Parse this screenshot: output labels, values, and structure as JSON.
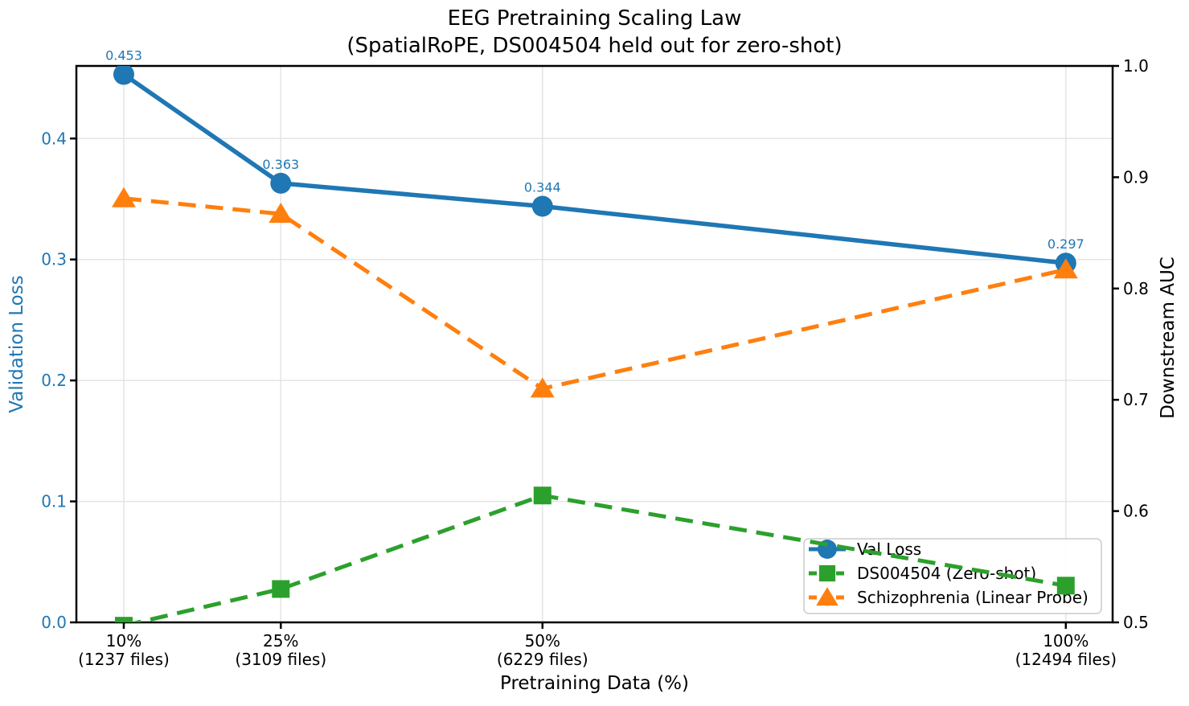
{
  "figure": {
    "title_line1": "EEG Pretraining Scaling Law",
    "title_line2": "(SpatialRoPE, DS004504 held out for zero-shot)",
    "xlabel": "Pretraining Data (%)",
    "ylabel_left": "Validation Loss",
    "ylabel_right": "Downstream AUC"
  },
  "chart_data": {
    "type": "line",
    "title": "EEG Pretraining Scaling Law (SpatialRoPE, DS004504 held out for zero-shot)",
    "grid": true,
    "x_axis": {
      "label": "Pretraining Data (%)",
      "min": 5.47,
      "max": 104.47
    },
    "x": [
      10,
      25,
      50,
      100
    ],
    "x_tick_labels": [
      [
        "10%",
        "(1237 files)"
      ],
      [
        "25%",
        "(3109 files)"
      ],
      [
        "50%",
        "(6229 files)"
      ],
      [
        "100%",
        "(12494 files)"
      ]
    ],
    "left_axis": {
      "label": "Validation Loss",
      "min": 0.0,
      "max": 0.46,
      "ticks": [
        0.0,
        0.1,
        0.2,
        0.3,
        0.4
      ],
      "tick_color": "#1f77b4"
    },
    "right_axis": {
      "label": "Downstream AUC",
      "min": 0.5,
      "max": 1.0,
      "ticks": [
        0.5,
        0.6,
        0.7,
        0.8,
        0.9,
        1.0
      ],
      "tick_color": "#000000"
    },
    "series": [
      {
        "name": "Val Loss",
        "axis": "left",
        "color": "#1f77b4",
        "line_style": "solid",
        "marker": "circle",
        "values": [
          0.453,
          0.363,
          0.344,
          0.297
        ],
        "point_labels": [
          "0.453",
          "0.363",
          "0.344",
          "0.297"
        ]
      },
      {
        "name": "DS004504 (Zero-shot)",
        "axis": "right",
        "color": "#2ca02c",
        "line_style": "dashed",
        "marker": "square",
        "values": [
          0.497,
          0.53,
          0.614,
          0.533
        ]
      },
      {
        "name": "Schizophrenia (Linear Probe)",
        "axis": "right",
        "color": "#ff7f0e",
        "line_style": "dashed",
        "marker": "triangle",
        "values": [
          0.881,
          0.867,
          0.71,
          0.817
        ]
      }
    ],
    "legend": {
      "position": "lower right",
      "entries": [
        "Val Loss",
        "DS004504 (Zero-shot)",
        "Schizophrenia (Linear Probe)"
      ]
    },
    "colors": {
      "grid": "#e4e4e4",
      "spine": "#000000",
      "legend_border": "#cccccc",
      "legend_bg": "#ffffff"
    }
  }
}
